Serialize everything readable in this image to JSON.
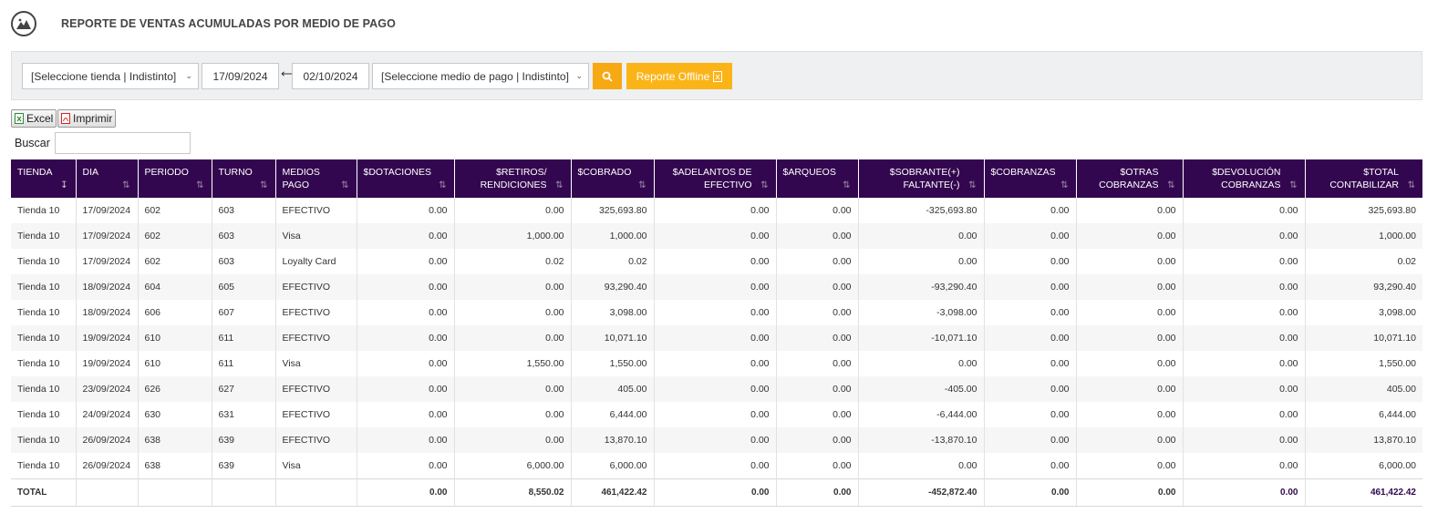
{
  "header": {
    "title": "REPORTE DE VENTAS ACUMULADAS POR MEDIO DE PAGO",
    "logo_icon": "mountain-logo-icon"
  },
  "filters": {
    "store_select": "[Seleccione tienda | Indistinto]",
    "date_from": "17/09/2024",
    "range_arrow": "⟷",
    "date_to": "02/10/2024",
    "payment_select": "[Seleccione medio de pago | Indistinto]",
    "offline_label": "Reporte Offline"
  },
  "actions": {
    "excel_label": "Excel",
    "print_label": "Imprimir"
  },
  "search": {
    "label": "Buscar",
    "value": ""
  },
  "table": {
    "columns": [
      {
        "label1": "TIENDA",
        "label2": ""
      },
      {
        "label1": "DIA",
        "label2": ""
      },
      {
        "label1": "PERIODO",
        "label2": ""
      },
      {
        "label1": "TURNO",
        "label2": ""
      },
      {
        "label1": "MEDIOS",
        "label2": "PAGO"
      },
      {
        "label1": "$DOTACIONES",
        "label2": ""
      },
      {
        "label1": "$RETIROS/",
        "label2": "RENDICIONES"
      },
      {
        "label1": "$COBRADO",
        "label2": ""
      },
      {
        "label1": "$ADELANTOS DE",
        "label2": "EFECTIVO"
      },
      {
        "label1": "$ARQUEOS",
        "label2": ""
      },
      {
        "label1": "$SOBRANTE(+)",
        "label2": "FALTANTE(-)"
      },
      {
        "label1": "$COBRANZAS",
        "label2": ""
      },
      {
        "label1": "$OTRAS",
        "label2": "COBRANZAS"
      },
      {
        "label1": "$DEVOLUCIÓN",
        "label2": "COBRANZAS"
      },
      {
        "label1": "$TOTAL",
        "label2": "CONTABILIZAR"
      }
    ],
    "rows": [
      [
        "Tienda 10",
        "17/09/2024",
        "602",
        "603",
        "EFECTIVO",
        "0.00",
        "0.00",
        "325,693.80",
        "0.00",
        "0.00",
        "-325,693.80",
        "0.00",
        "0.00",
        "0.00",
        "325,693.80"
      ],
      [
        "Tienda 10",
        "17/09/2024",
        "602",
        "603",
        "Visa",
        "0.00",
        "1,000.00",
        "1,000.00",
        "0.00",
        "0.00",
        "0.00",
        "0.00",
        "0.00",
        "0.00",
        "1,000.00"
      ],
      [
        "Tienda 10",
        "17/09/2024",
        "602",
        "603",
        "Loyalty Card",
        "0.00",
        "0.02",
        "0.02",
        "0.00",
        "0.00",
        "0.00",
        "0.00",
        "0.00",
        "0.00",
        "0.02"
      ],
      [
        "Tienda 10",
        "18/09/2024",
        "604",
        "605",
        "EFECTIVO",
        "0.00",
        "0.00",
        "93,290.40",
        "0.00",
        "0.00",
        "-93,290.40",
        "0.00",
        "0.00",
        "0.00",
        "93,290.40"
      ],
      [
        "Tienda 10",
        "18/09/2024",
        "606",
        "607",
        "EFECTIVO",
        "0.00",
        "0.00",
        "3,098.00",
        "0.00",
        "0.00",
        "-3,098.00",
        "0.00",
        "0.00",
        "0.00",
        "3,098.00"
      ],
      [
        "Tienda 10",
        "19/09/2024",
        "610",
        "611",
        "EFECTIVO",
        "0.00",
        "0.00",
        "10,071.10",
        "0.00",
        "0.00",
        "-10,071.10",
        "0.00",
        "0.00",
        "0.00",
        "10,071.10"
      ],
      [
        "Tienda 10",
        "19/09/2024",
        "610",
        "611",
        "Visa",
        "0.00",
        "1,550.00",
        "1,550.00",
        "0.00",
        "0.00",
        "0.00",
        "0.00",
        "0.00",
        "0.00",
        "1,550.00"
      ],
      [
        "Tienda 10",
        "23/09/2024",
        "626",
        "627",
        "EFECTIVO",
        "0.00",
        "0.00",
        "405.00",
        "0.00",
        "0.00",
        "-405.00",
        "0.00",
        "0.00",
        "0.00",
        "405.00"
      ],
      [
        "Tienda 10",
        "24/09/2024",
        "630",
        "631",
        "EFECTIVO",
        "0.00",
        "0.00",
        "6,444.00",
        "0.00",
        "0.00",
        "-6,444.00",
        "0.00",
        "0.00",
        "0.00",
        "6,444.00"
      ],
      [
        "Tienda 10",
        "26/09/2024",
        "638",
        "639",
        "EFECTIVO",
        "0.00",
        "0.00",
        "13,870.10",
        "0.00",
        "0.00",
        "-13,870.10",
        "0.00",
        "0.00",
        "0.00",
        "13,870.10"
      ],
      [
        "Tienda 10",
        "26/09/2024",
        "638",
        "639",
        "Visa",
        "0.00",
        "6,000.00",
        "6,000.00",
        "0.00",
        "0.00",
        "0.00",
        "0.00",
        "0.00",
        "0.00",
        "6,000.00"
      ]
    ],
    "totals": [
      "TOTAL",
      "",
      "",
      "",
      "",
      "0.00",
      "8,550.02",
      "461,422.42",
      "0.00",
      "0.00",
      "-452,872.40",
      "0.00",
      "0.00",
      "0.00",
      "461,422.42"
    ]
  },
  "colors": {
    "header_bg": "#33074f",
    "accent_button": "#f6a913",
    "offline_button": "#fbb418"
  }
}
